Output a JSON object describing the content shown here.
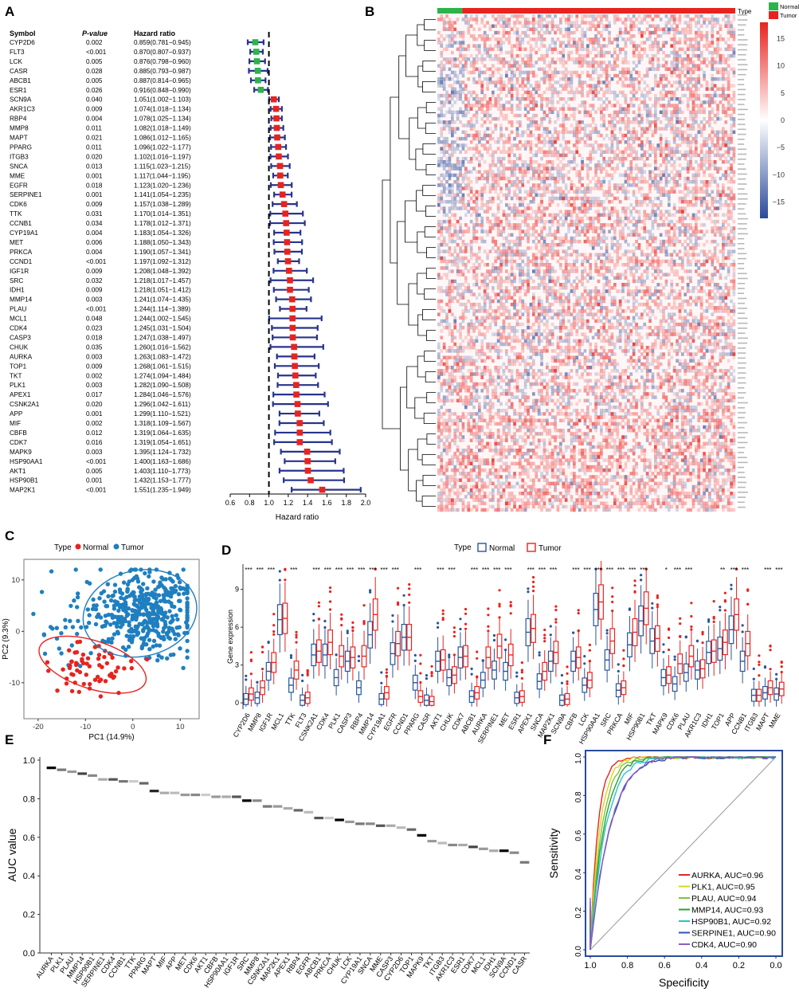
{
  "panels": {
    "a": "A",
    "b": "B",
    "c": "C",
    "d": "D",
    "e": "E",
    "f": "F"
  },
  "chart_data": [
    {
      "type": "forest",
      "panel": "A",
      "headers": {
        "symbol": "Symbol",
        "pvalue": "P-value",
        "hr": "Hazard ratio"
      },
      "xlabel": "Hazard ratio",
      "xlim": [
        0.6,
        2.0
      ],
      "ticks": [
        "0.6",
        "0.8",
        "1.0",
        "1.2",
        "1.4",
        "1.6",
        "1.8",
        "2.0"
      ],
      "reference": 1.0,
      "colors": {
        "protective": "#2db34a",
        "risk": "#e8231f",
        "ci": "#27348b"
      },
      "rows": [
        {
          "g": "CYP2D6",
          "p": "0.002",
          "t": "0.859(0.781−0.945)",
          "hr": 0.859,
          "lo": 0.781,
          "hi": 0.945
        },
        {
          "g": "FLT3",
          "p": "<0.001",
          "t": "0.870(0.807−0.937)",
          "hr": 0.87,
          "lo": 0.807,
          "hi": 0.937
        },
        {
          "g": "LCK",
          "p": "0.005",
          "t": "0.876(0.798−0.960)",
          "hr": 0.876,
          "lo": 0.798,
          "hi": 0.96
        },
        {
          "g": "CASR",
          "p": "0.028",
          "t": "0.885(0.793−0.987)",
          "hr": 0.885,
          "lo": 0.793,
          "hi": 0.987
        },
        {
          "g": "ABCB1",
          "p": "0.005",
          "t": "0.887(0.814−0.965)",
          "hr": 0.887,
          "lo": 0.814,
          "hi": 0.965
        },
        {
          "g": "ESR1",
          "p": "0.026",
          "t": "0.916(0.848−0.990)",
          "hr": 0.916,
          "lo": 0.848,
          "hi": 0.99
        },
        {
          "g": "SCN9A",
          "p": "0.040",
          "t": "1.051(1.002−1.103)",
          "hr": 1.051,
          "lo": 1.002,
          "hi": 1.103
        },
        {
          "g": "AKR1C3",
          "p": "0.009",
          "t": "1.074(1.018−1.134)",
          "hr": 1.074,
          "lo": 1.018,
          "hi": 1.134
        },
        {
          "g": "RBP4",
          "p": "0.004",
          "t": "1.078(1.025−1.134)",
          "hr": 1.078,
          "lo": 1.025,
          "hi": 1.134
        },
        {
          "g": "MMP8",
          "p": "0.011",
          "t": "1.082(1.018−1.149)",
          "hr": 1.082,
          "lo": 1.018,
          "hi": 1.149
        },
        {
          "g": "MAPT",
          "p": "0.021",
          "t": "1.086(1.012−1.165)",
          "hr": 1.086,
          "lo": 1.012,
          "hi": 1.165
        },
        {
          "g": "PPARG",
          "p": "0.011",
          "t": "1.096(1.022−1.177)",
          "hr": 1.096,
          "lo": 1.022,
          "hi": 1.177
        },
        {
          "g": "ITGB3",
          "p": "0.020",
          "t": "1.102(1.016−1.197)",
          "hr": 1.102,
          "lo": 1.016,
          "hi": 1.197
        },
        {
          "g": "SNCA",
          "p": "0.013",
          "t": "1.115(1.023−1.215)",
          "hr": 1.115,
          "lo": 1.023,
          "hi": 1.215
        },
        {
          "g": "MME",
          "p": "0.001",
          "t": "1.117(1.044−1.195)",
          "hr": 1.117,
          "lo": 1.044,
          "hi": 1.195
        },
        {
          "g": "EGFR",
          "p": "0.018",
          "t": "1.123(1.020−1.236)",
          "hr": 1.123,
          "lo": 1.02,
          "hi": 1.236
        },
        {
          "g": "SERPINE1",
          "p": "0.001",
          "t": "1.141(1.054−1.235)",
          "hr": 1.141,
          "lo": 1.054,
          "hi": 1.235
        },
        {
          "g": "CDK6",
          "p": "0.009",
          "t": "1.157(1.038−1.289)",
          "hr": 1.157,
          "lo": 1.038,
          "hi": 1.289
        },
        {
          "g": "TTK",
          "p": "0.031",
          "t": "1.170(1.014−1.351)",
          "hr": 1.17,
          "lo": 1.014,
          "hi": 1.351
        },
        {
          "g": "CCNB1",
          "p": "0.034",
          "t": "1.178(1.012−1.371)",
          "hr": 1.178,
          "lo": 1.012,
          "hi": 1.371
        },
        {
          "g": "CYP19A1",
          "p": "0.004",
          "t": "1.183(1.054−1.326)",
          "hr": 1.183,
          "lo": 1.054,
          "hi": 1.326
        },
        {
          "g": "MET",
          "p": "0.006",
          "t": "1.188(1.050−1.343)",
          "hr": 1.188,
          "lo": 1.05,
          "hi": 1.343
        },
        {
          "g": "PRKCA",
          "p": "0.004",
          "t": "1.190(1.057−1.341)",
          "hr": 1.19,
          "lo": 1.057,
          "hi": 1.341
        },
        {
          "g": "CCND1",
          "p": "<0.001",
          "t": "1.197(1.092−1.312)",
          "hr": 1.197,
          "lo": 1.092,
          "hi": 1.312
        },
        {
          "g": "IGF1R",
          "p": "0.009",
          "t": "1.208(1.048−1.392)",
          "hr": 1.208,
          "lo": 1.048,
          "hi": 1.392
        },
        {
          "g": "SRC",
          "p": "0.032",
          "t": "1.218(1.017−1.457)",
          "hr": 1.218,
          "lo": 1.017,
          "hi": 1.457
        },
        {
          "g": "IDH1",
          "p": "0.009",
          "t": "1.218(1.051−1.412)",
          "hr": 1.218,
          "lo": 1.051,
          "hi": 1.412
        },
        {
          "g": "MMP14",
          "p": "0.003",
          "t": "1.241(1.074−1.435)",
          "hr": 1.241,
          "lo": 1.074,
          "hi": 1.435
        },
        {
          "g": "PLAU",
          "p": "<0.001",
          "t": "1.244(1.114−1.389)",
          "hr": 1.244,
          "lo": 1.114,
          "hi": 1.389
        },
        {
          "g": "MCL1",
          "p": "0.048",
          "t": "1.244(1.002−1.545)",
          "hr": 1.244,
          "lo": 1.002,
          "hi": 1.545
        },
        {
          "g": "CDK4",
          "p": "0.023",
          "t": "1.245(1.031−1.504)",
          "hr": 1.245,
          "lo": 1.031,
          "hi": 1.504
        },
        {
          "g": "CASP3",
          "p": "0.018",
          "t": "1.247(1.038−1.497)",
          "hr": 1.247,
          "lo": 1.038,
          "hi": 1.497
        },
        {
          "g": "CHUK",
          "p": "0.035",
          "t": "1.260(1.016−1.562)",
          "hr": 1.26,
          "lo": 1.016,
          "hi": 1.562
        },
        {
          "g": "AURKA",
          "p": "0.003",
          "t": "1.263(1.083−1.472)",
          "hr": 1.263,
          "lo": 1.083,
          "hi": 1.472
        },
        {
          "g": "TOP1",
          "p": "0.009",
          "t": "1.268(1.061−1.515)",
          "hr": 1.268,
          "lo": 1.061,
          "hi": 1.515
        },
        {
          "g": "TKT",
          "p": "0.002",
          "t": "1.274(1.094−1.484)",
          "hr": 1.274,
          "lo": 1.094,
          "hi": 1.484
        },
        {
          "g": "PLK1",
          "p": "0.003",
          "t": "1.282(1.090−1.508)",
          "hr": 1.282,
          "lo": 1.09,
          "hi": 1.508
        },
        {
          "g": "APEX1",
          "p": "0.017",
          "t": "1.284(1.046−1.576)",
          "hr": 1.284,
          "lo": 1.046,
          "hi": 1.576
        },
        {
          "g": "CSNK2A1",
          "p": "0.020",
          "t": "1.296(1.042−1.611)",
          "hr": 1.296,
          "lo": 1.042,
          "hi": 1.611
        },
        {
          "g": "APP",
          "p": "0.001",
          "t": "1.299(1.110−1.521)",
          "hr": 1.299,
          "lo": 1.11,
          "hi": 1.521
        },
        {
          "g": "MIF",
          "p": "0.002",
          "t": "1.318(1.109−1.567)",
          "hr": 1.318,
          "lo": 1.109,
          "hi": 1.567
        },
        {
          "g": "CBFB",
          "p": "0.012",
          "t": "1.319(1.064−1.635)",
          "hr": 1.319,
          "lo": 1.064,
          "hi": 1.635
        },
        {
          "g": "CDK7",
          "p": "0.016",
          "t": "1.319(1.054−1.651)",
          "hr": 1.319,
          "lo": 1.054,
          "hi": 1.651
        },
        {
          "g": "MAPK9",
          "p": "0.003",
          "t": "1.395(1.124−1.732)",
          "hr": 1.395,
          "lo": 1.124,
          "hi": 1.732
        },
        {
          "g": "HSP90AA1",
          "p": "<0.001",
          "t": "1.400(1.163−1.686)",
          "hr": 1.4,
          "lo": 1.163,
          "hi": 1.686
        },
        {
          "g": "AKT1",
          "p": "0.005",
          "t": "1.403(1.110−1.773)",
          "hr": 1.403,
          "lo": 1.11,
          "hi": 1.773
        },
        {
          "g": "HSP90B1",
          "p": "0.001",
          "t": "1.432(1.153−1.777)",
          "hr": 1.432,
          "lo": 1.153,
          "hi": 1.777
        },
        {
          "g": "MAP2K1",
          "p": "<0.001",
          "t": "1.551(1.235−1.949)",
          "hr": 1.551,
          "lo": 1.235,
          "hi": 1.949
        }
      ]
    },
    {
      "type": "heatmap",
      "panel": "B",
      "legend_title": "Type",
      "groups": [
        {
          "name": "Normal",
          "color": "#2db34a",
          "fraction": 0.084
        },
        {
          "name": "Tumor",
          "color": "#e8231f",
          "fraction": 0.916
        }
      ],
      "scale_ticks": [
        "15",
        "10",
        "5",
        "0",
        "−5",
        "−10",
        "−15"
      ],
      "scale_range": [
        -18,
        18
      ],
      "scale_colors": {
        "high": "#e8231f",
        "mid": "#ffffff",
        "low": "#2a4b9b"
      }
    },
    {
      "type": "scatter",
      "panel": "C",
      "legend_title": "Type",
      "legend": [
        {
          "name": "Normal",
          "color": "#e8231f"
        },
        {
          "name": "Tumor",
          "color": "#1f7fc0"
        }
      ],
      "xlabel": "PC1 (14.9%)",
      "ylabel": "PC2 (9.3%)",
      "xlim": [
        -23,
        14
      ],
      "ylim": [
        -17,
        14
      ],
      "xticks": [
        "-20",
        "-10",
        "0",
        "10"
      ],
      "yticks": [
        "10",
        "0",
        "-10"
      ]
    },
    {
      "type": "boxplot",
      "panel": "D",
      "legend_title": "Type",
      "legend": [
        {
          "name": "Normal",
          "color": "#27559c"
        },
        {
          "name": "Tumor",
          "color": "#e8231f"
        }
      ],
      "ylabel": "Gene expression",
      "ylim": [
        -0.5,
        11
      ],
      "yticks": [
        "0",
        "3",
        "6",
        "9"
      ],
      "genes": [
        "CYP2D6",
        "MMP8",
        "IGF1R",
        "MCL1",
        "TTK",
        "FLT3",
        "CSNK2A1",
        "CDK4",
        "PLK1",
        "CASP3",
        "RBP4",
        "MMP14",
        "CYP19A1",
        "EGFR",
        "CCND1",
        "PPARG",
        "CASR",
        "AKT1",
        "CHUK",
        "CDK7",
        "ABCB1",
        "AURKA",
        "SERPINE1",
        "MET",
        "ESR1",
        "APEX1",
        "SNCA",
        "MAP2K1",
        "SCN9A",
        "CBFB",
        "LCK",
        "HSP90AA1",
        "SRC",
        "PRKCA",
        "MIF",
        "HSP90B1",
        "TKT",
        "MAPK9",
        "CDK6",
        "PLAU",
        "AKR1C3",
        "IDH1",
        "TOP1",
        "APP",
        "CCNB1",
        "ITGB3",
        "MAPT",
        "MME"
      ],
      "normal_median": [
        0.3,
        0.4,
        2.5,
        6.6,
        1.4,
        0.2,
        3.8,
        3.8,
        2.0,
        3.3,
        1.2,
        5.4,
        0.3,
        3.9,
        5.2,
        1.6,
        0.2,
        3.3,
        2.0,
        3.6,
        0.5,
        1.8,
        2.6,
        2.5,
        0.4,
        5.6,
        1.7,
        3.3,
        0.2,
        3.3,
        1.4,
        7.4,
        3.4,
        1.0,
        4.6,
        6.5,
        4.9,
        2.0,
        1.5,
        2.4,
        2.6,
        4.0,
        4.3,
        5.8,
        3.3,
        0.6,
        0.8,
        0.7
      ],
      "tumor_median": [
        0.7,
        1.2,
        3.2,
        6.7,
        2.6,
        0.4,
        4.1,
        4.8,
        3.7,
        3.6,
        3.7,
        7.0,
        0.8,
        4.7,
        5.2,
        0.5,
        0.1,
        3.4,
        2.2,
        3.7,
        0.8,
        3.6,
        4.5,
        3.8,
        0.5,
        5.9,
        2.5,
        4.0,
        0.3,
        3.6,
        1.8,
        8.0,
        4.9,
        1.2,
        5.6,
        7.5,
        5.1,
        2.2,
        3.1,
        3.7,
        2.7,
        4.1,
        4.8,
        7.0,
        4.7,
        0.6,
        1.2,
        1.1
      ],
      "significance": [
        "***",
        "***",
        "***",
        "",
        "***",
        "",
        "***",
        "***",
        "***",
        "***",
        "***",
        "***",
        "***",
        "***",
        "",
        "***",
        "",
        "***",
        "***",
        "",
        "***",
        "***",
        "***",
        "***",
        "",
        "***",
        "***",
        "***",
        "",
        "***",
        "***",
        "***",
        "***",
        "***",
        "***",
        "***",
        "",
        "*",
        "***",
        "***",
        "",
        "",
        "**",
        "***",
        "***",
        "",
        "***",
        "***"
      ]
    },
    {
      "type": "bar",
      "panel": "E",
      "ylabel": "AUC value",
      "ylim": [
        0,
        1.0
      ],
      "yticks": [
        "0.0",
        "0.2",
        "0.4",
        "0.6",
        "0.8",
        "1.0"
      ],
      "categories": [
        "AURKA",
        "PLK1",
        "PLAU",
        "MMP14",
        "HSP90B1",
        "SERPINE1",
        "CDK4",
        "CCNB1",
        "TTK",
        "PPARG",
        "MAPT",
        "MIF",
        "APP",
        "MET",
        "CDK6",
        "AKT1",
        "CBFB",
        "HSP90AA1",
        "IGF1R",
        "SRC",
        "MMP8",
        "CSNK2A1",
        "MAP2K1",
        "APEX1",
        "RBP4",
        "EGFR",
        "ABCB1",
        "PRKCA",
        "CHUK",
        "LCK",
        "CYP19A1",
        "SNCA",
        "MME",
        "CASP3",
        "CYP2D6",
        "TOP1",
        "MAPK9",
        "TKT",
        "ITGB3",
        "AKR1C3",
        "ESR1",
        "CDK7",
        "MCL1",
        "IDH1",
        "SCN9A",
        "CCND1",
        "CASR"
      ],
      "values": [
        0.96,
        0.95,
        0.94,
        0.93,
        0.92,
        0.9,
        0.9,
        0.89,
        0.89,
        0.88,
        0.84,
        0.83,
        0.83,
        0.82,
        0.82,
        0.82,
        0.81,
        0.81,
        0.81,
        0.79,
        0.79,
        0.76,
        0.76,
        0.75,
        0.74,
        0.73,
        0.7,
        0.7,
        0.69,
        0.68,
        0.67,
        0.67,
        0.66,
        0.66,
        0.65,
        0.64,
        0.61,
        0.58,
        0.57,
        0.56,
        0.56,
        0.55,
        0.54,
        0.53,
        0.53,
        0.52,
        0.47
      ],
      "shades": [
        "#000000",
        "#777777",
        "#999999",
        "#444444",
        "#888888",
        "#aaaaaa",
        "#555555",
        "#777777",
        "#cccccc",
        "#666666",
        "#222222",
        "#aaaaaa",
        "#bbbbbb",
        "#999999",
        "#888888",
        "#cccccc",
        "#999999",
        "#aaaaaa",
        "#555555",
        "#000000",
        "#888888",
        "#777777",
        "#999999",
        "#aaaaaa",
        "#666666",
        "#bbbbbb",
        "#555555",
        "#cccccc",
        "#000000",
        "#999999",
        "#777777",
        "#888888",
        "#555555",
        "#aaaaaa",
        "#bbbbbb",
        "#666666",
        "#000000",
        "#999999",
        "#bbbbbb",
        "#888888",
        "#aaaaaa",
        "#444444",
        "#999999",
        "#aaaaaa",
        "#000000",
        "#888888",
        "#777777"
      ]
    },
    {
      "type": "line",
      "panel": "F",
      "xlabel": "Specificity",
      "ylabel": "Sensitivity",
      "xlim": [
        1.0,
        0.0
      ],
      "ylim": [
        0.0,
        1.0
      ],
      "xticks": [
        "1.0",
        "0.8",
        "0.6",
        "0.4",
        "0.2",
        "0.0"
      ],
      "yticks": [
        "0.0",
        "0.2",
        "0.4",
        "0.6",
        "0.8",
        "1.0"
      ],
      "series": [
        {
          "name": "AURKA, AUC=0.96",
          "auc": 0.96,
          "color": "#e8231f"
        },
        {
          "name": "PLK1, AUC=0.95",
          "auc": 0.95,
          "color": "#dcd61a"
        },
        {
          "name": "PLAU, AUC=0.94",
          "auc": 0.94,
          "color": "#7fc242"
        },
        {
          "name": "MMP14, AUC=0.93",
          "auc": 0.93,
          "color": "#2aa02f"
        },
        {
          "name": "HSP90B1, AUC=0.92",
          "auc": 0.92,
          "color": "#25c6c9"
        },
        {
          "name": "SERPINE1, AUC=0.90",
          "auc": 0.9,
          "color": "#2d52b5"
        },
        {
          "name": "CDK4, AUC=0.90",
          "auc": 0.9,
          "color": "#8d5cc4"
        }
      ]
    }
  ]
}
